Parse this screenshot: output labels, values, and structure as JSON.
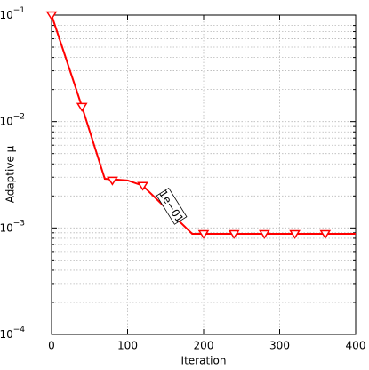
{
  "chart_data": {
    "type": "line",
    "x_label": "Iteration",
    "y_label": "Adaptive μ",
    "xlim": [
      0,
      400
    ],
    "xticks": [
      0,
      100,
      200,
      300,
      400
    ],
    "ylim": [
      0.0001,
      0.1
    ],
    "yscale": "log",
    "yticks": [
      {
        "value": 0.0001,
        "label": "10",
        "exponent": "−4"
      },
      {
        "value": 0.001,
        "label": "10",
        "exponent": "−3"
      },
      {
        "value": 0.01,
        "label": "10",
        "exponent": "−2"
      },
      {
        "value": 0.1,
        "label": "10",
        "exponent": "−1"
      }
    ],
    "grid": true,
    "minor_grid": true,
    "series": [
      {
        "color": "#ff0000",
        "x": [
          0,
          40,
          70,
          100,
          120,
          185,
          200,
          400
        ],
        "values": [
          0.1,
          0.0138,
          0.0029,
          0.0028,
          0.0025,
          0.00088,
          0.00088,
          0.00088
        ],
        "markers": {
          "x": [
            0,
            40,
            80,
            120,
            200,
            240,
            280,
            320,
            360
          ],
          "values": [
            0.1,
            0.0138,
            0.0028,
            0.0025,
            0.00088,
            0.00088,
            0.00088,
            0.00088,
            0.00088
          ]
        }
      }
    ],
    "annotations": [
      {
        "text": "1e−01",
        "x": 158,
        "y": 0.0016
      }
    ]
  }
}
